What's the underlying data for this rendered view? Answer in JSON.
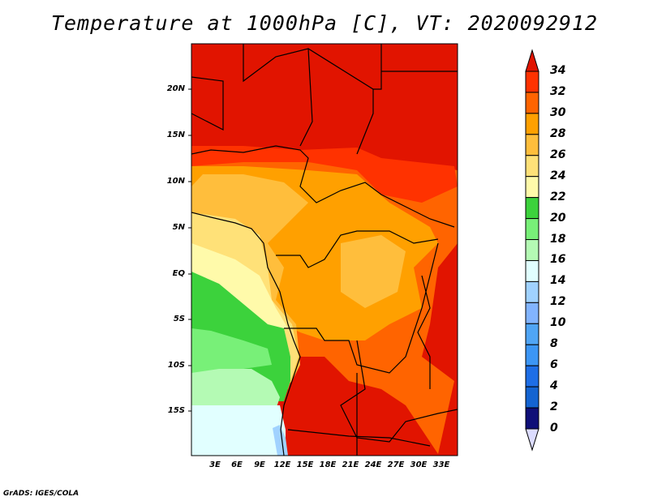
{
  "title": "Temperature at 1000hPa [C], VT: 2020092912",
  "credit": "GrADS: IGES/COLA",
  "lat_labels": [
    "20N",
    "15N",
    "10N",
    "5N",
    "EQ",
    "5S",
    "10S",
    "15S"
  ],
  "lon_labels": [
    "3E",
    "6E",
    "9E",
    "12E",
    "15E",
    "18E",
    "21E",
    "24E",
    "27E",
    "30E",
    "33E"
  ],
  "colorbar": {
    "labels": [
      "34",
      "32",
      "30",
      "28",
      "26",
      "24",
      "22",
      "20",
      "18",
      "16",
      "14",
      "12",
      "10",
      "8",
      "6",
      "4",
      "2",
      "0"
    ],
    "colors": [
      "#e11400",
      "#ff3200",
      "#ff6400",
      "#ffa000",
      "#ffbe3c",
      "#ffe178",
      "#fffaaa",
      "#3cd23c",
      "#78f078",
      "#b4fab4",
      "#e1ffff",
      "#a0d2ff",
      "#82b4ff",
      "#50a5f5",
      "#3c96f5",
      "#1e6ee6",
      "#1464d2",
      "#0f0f78",
      "#dcdcff"
    ]
  }
}
